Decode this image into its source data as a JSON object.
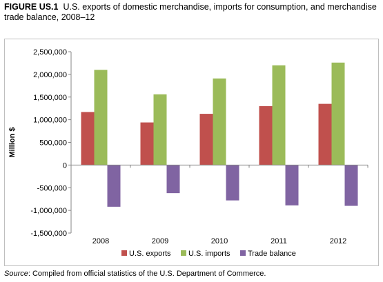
{
  "figure": {
    "label": "FIGURE US.1",
    "caption": "U.S. exports of domestic merchandise, imports for consumption, and merchandise trade balance, 2008–12"
  },
  "source": {
    "label": "Source",
    "text": ": Compiled from official statistics of the U.S. Department of Commerce."
  },
  "chart_data": {
    "type": "bar",
    "title": "",
    "xlabel": "",
    "ylabel": "Million $",
    "categories": [
      "2008",
      "2009",
      "2010",
      "2011",
      "2012"
    ],
    "series": [
      {
        "name": "U.S. exports",
        "color": "#c0504d",
        "values": [
          1170000,
          940000,
          1130000,
          1300000,
          1350000
        ]
      },
      {
        "name": "U.S. imports",
        "color": "#9bbb59",
        "values": [
          2100000,
          1560000,
          1910000,
          2200000,
          2260000
        ]
      },
      {
        "name": "Trade balance",
        "color": "#8064a2",
        "values": [
          -920000,
          -620000,
          -780000,
          -890000,
          -900000
        ]
      }
    ],
    "ylim": [
      -1500000,
      2500000
    ],
    "yticks": [
      2500000,
      2000000,
      1500000,
      1000000,
      500000,
      0,
      -500000,
      -1000000,
      -1500000
    ],
    "ytick_labels": [
      "2,500,000",
      "2,000,000",
      "1,500,000",
      "1,000,000",
      "500,000",
      "0",
      "-500,000",
      "-1,000,000",
      "-1,500,000"
    ],
    "grid": false,
    "legend_position": "bottom"
  }
}
